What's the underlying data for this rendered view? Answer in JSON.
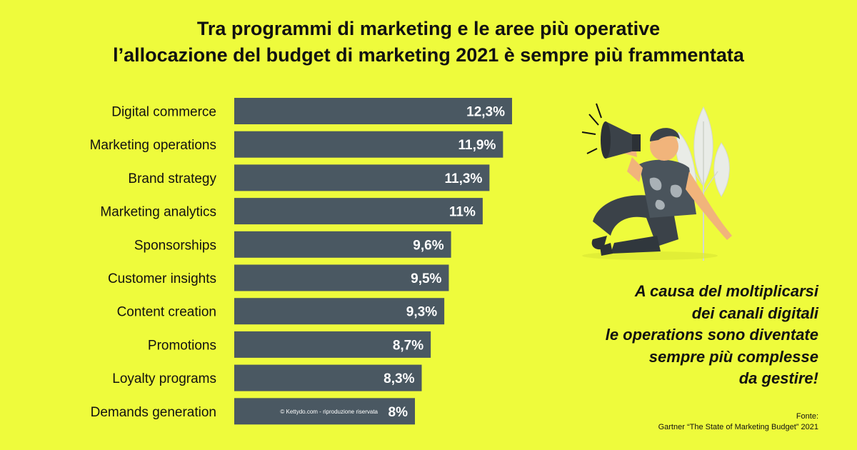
{
  "title_lines": [
    "Tra programmi di marketing e le aree più operative",
    "l’allocazione del budget di marketing 2021 è sempre più frammentata"
  ],
  "chart_data": {
    "type": "bar",
    "orientation": "horizontal",
    "categories": [
      "Digital commerce",
      "Marketing operations",
      "Brand strategy",
      "Marketing analytics",
      "Sponsorships",
      "Customer insights",
      "Content creation",
      "Promotions",
      "Loyalty programs",
      "Demands generation"
    ],
    "values": [
      12.3,
      11.9,
      11.3,
      11,
      9.6,
      9.5,
      9.3,
      8.7,
      8.3,
      8
    ],
    "value_labels": [
      "12,3%",
      "11,9%",
      "11,3%",
      "11%",
      "9,6%",
      "9,5%",
      "9,3%",
      "8,7%",
      "8,3%",
      "8%"
    ],
    "unit": "%",
    "bar_color": "#4a5862",
    "watermark": "© Kettydo.com - riproduzione riservata"
  },
  "quote_lines": [
    "A causa del moltiplicarsi",
    "dei canali digitali",
    "le operations sono diventate",
    "sempre più complesse",
    "da gestire!"
  ],
  "source": {
    "label": "Fonte:",
    "text": "Gartner “The State of Marketing Budget” 2021"
  },
  "colors": {
    "background": "#eefb3c",
    "bar": "#4a5862",
    "text": "#111111"
  },
  "illustration": "man-with-megaphone-illustration"
}
